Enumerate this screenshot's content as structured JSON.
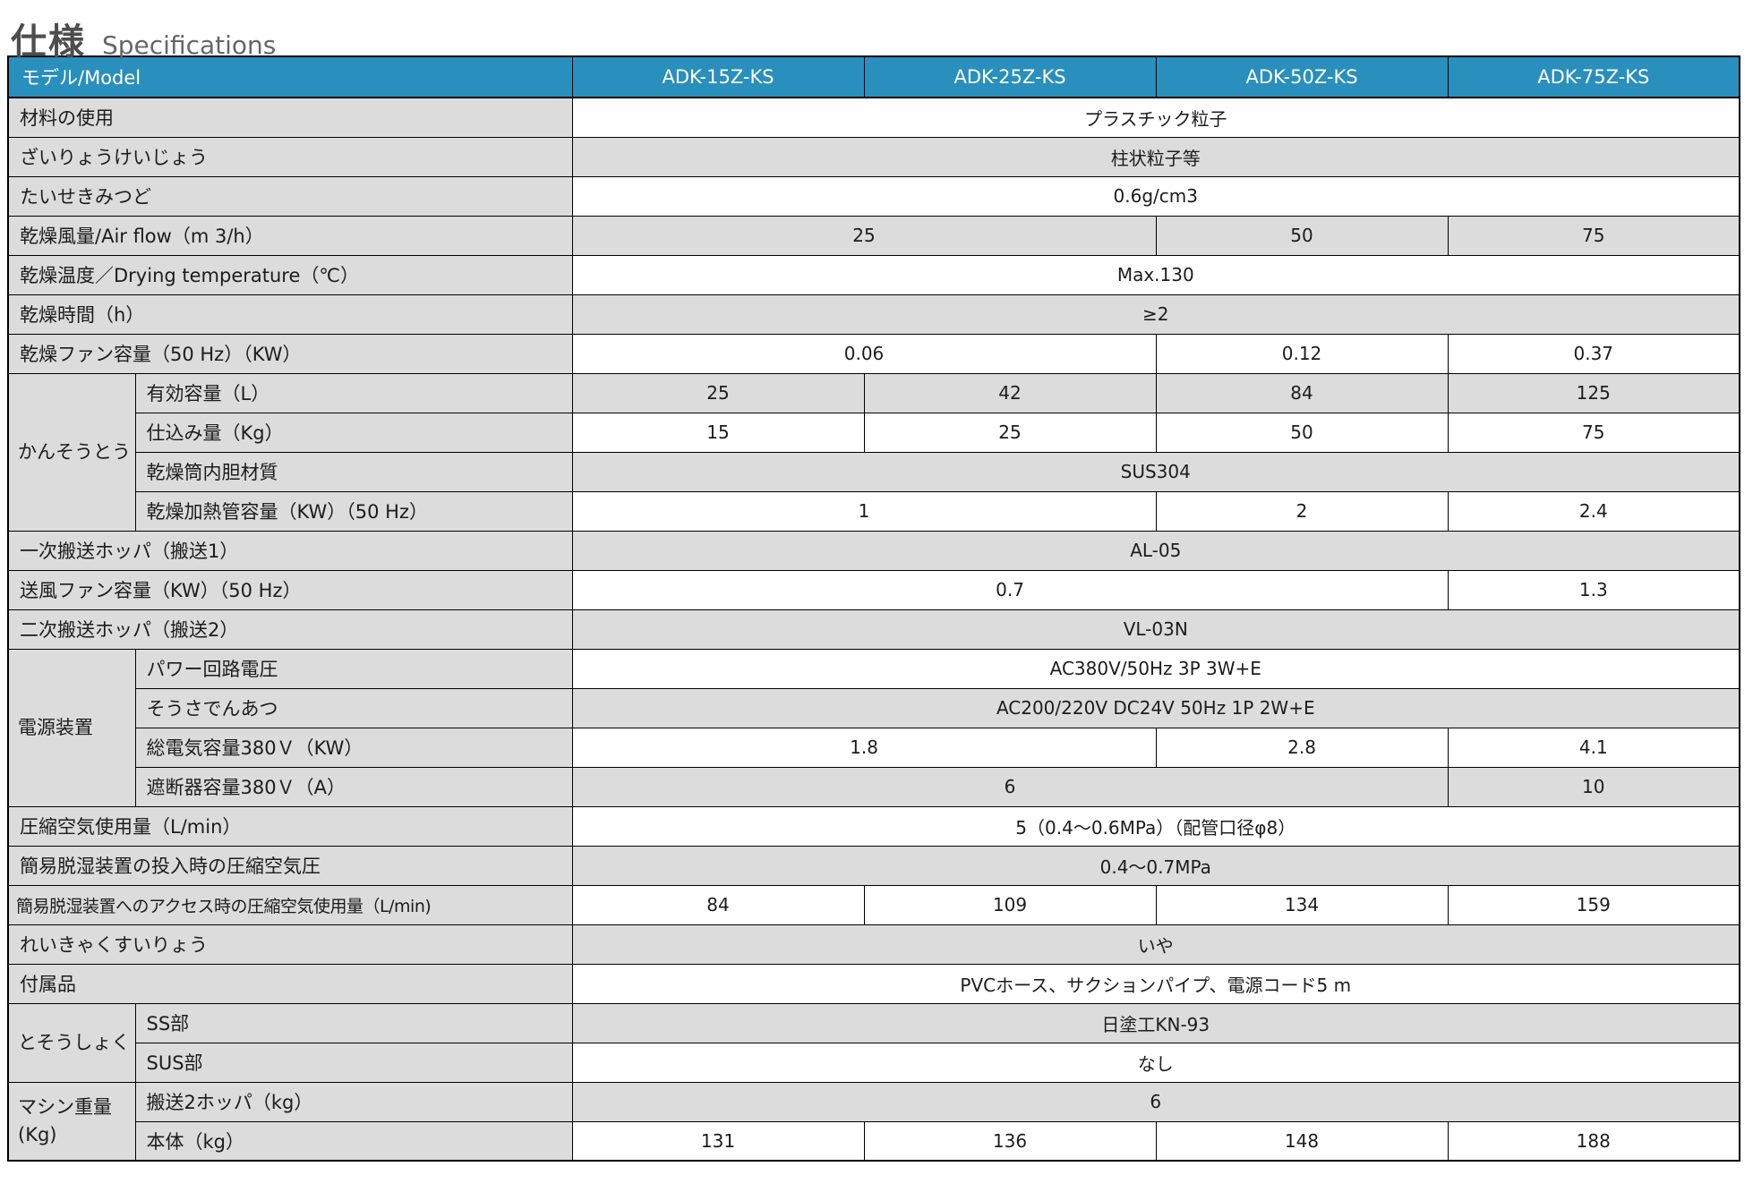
{
  "title": {
    "jp": "仕様",
    "en": "Specifications"
  },
  "colors": {
    "header_bg": "#298fbc",
    "label_bg": "#dcdcdc",
    "alt_row_bg": "#dcdcdc",
    "border": "#000000",
    "header_text": "#ffffff"
  },
  "table": {
    "header": {
      "model_label": "モデル/Model",
      "models": [
        "ADK-15Z-KS",
        "ADK-25Z-KS",
        "ADK-50Z-KS",
        "ADK-75Z-KS"
      ]
    },
    "rows": [
      {
        "label": "材料の使用",
        "shade": "white",
        "cells": [
          {
            "text": "プラスチック粒子",
            "span": 4
          }
        ]
      },
      {
        "label": "ざいりょうけいじょう",
        "shade": "gray",
        "cells": [
          {
            "text": "柱状粒子等",
            "span": 4
          }
        ]
      },
      {
        "label": "たいせきみつど",
        "shade": "white",
        "cells": [
          {
            "text": "0.6g/cm3",
            "span": 4
          }
        ]
      },
      {
        "label": "乾燥風量/Air flow（m 3/h）",
        "shade": "gray",
        "cells": [
          {
            "text": "25",
            "span": 2
          },
          {
            "text": "50",
            "span": 1
          },
          {
            "text": "75",
            "span": 1
          }
        ]
      },
      {
        "label": "乾燥温度／Drying temperature（℃）",
        "shade": "white",
        "cells": [
          {
            "text": "Max.130",
            "span": 4
          }
        ]
      },
      {
        "label": "乾燥時間（h）",
        "shade": "gray",
        "cells": [
          {
            "text": "≥2",
            "span": 4
          }
        ]
      },
      {
        "label": "乾燥ファン容量（50 Hz）（KW）",
        "shade": "white",
        "cells": [
          {
            "text": "0.06",
            "span": 2
          },
          {
            "text": "0.12",
            "span": 1
          },
          {
            "text": "0.37",
            "span": 1
          }
        ]
      },
      {
        "group": {
          "label": "かんそうとう",
          "rowspan": 4
        },
        "grouped": true,
        "label": "有効容量（L）",
        "shade": "gray",
        "cells": [
          {
            "text": "25",
            "span": 1
          },
          {
            "text": "42",
            "span": 1
          },
          {
            "text": "84",
            "span": 1
          },
          {
            "text": "125",
            "span": 1
          }
        ]
      },
      {
        "grouped": true,
        "label": "仕込み量（Kg）",
        "shade": "white",
        "cells": [
          {
            "text": "15",
            "span": 1
          },
          {
            "text": "25",
            "span": 1
          },
          {
            "text": "50",
            "span": 1
          },
          {
            "text": "75",
            "span": 1
          }
        ]
      },
      {
        "grouped": true,
        "label": "乾燥筒内胆材質",
        "shade": "gray",
        "cells": [
          {
            "text": "SUS304",
            "span": 4
          }
        ]
      },
      {
        "grouped": true,
        "label": "乾燥加熱管容量（KW）（50 Hz）",
        "shade": "white",
        "cells": [
          {
            "text": "1",
            "span": 2
          },
          {
            "text": "2",
            "span": 1
          },
          {
            "text": "2.4",
            "span": 1
          }
        ]
      },
      {
        "label": "一次搬送ホッパ（搬送1）",
        "shade": "gray",
        "cells": [
          {
            "text": "AL-05",
            "span": 4
          }
        ]
      },
      {
        "label": "送風ファン容量（KW）（50 Hz）",
        "shade": "white",
        "cells": [
          {
            "text": "0.7",
            "span": 3
          },
          {
            "text": "1.3",
            "span": 1
          }
        ]
      },
      {
        "label": "二次搬送ホッパ（搬送2）",
        "shade": "gray",
        "cells": [
          {
            "text": "VL-03N",
            "span": 4
          }
        ]
      },
      {
        "group": {
          "label": "電源装置",
          "rowspan": 4
        },
        "grouped": true,
        "label": "パワー回路電圧",
        "shade": "white",
        "cells": [
          {
            "text": "AC380V/50Hz 3P 3W+E",
            "span": 4
          }
        ]
      },
      {
        "grouped": true,
        "label": "そうさでんあつ",
        "shade": "gray",
        "cells": [
          {
            "text": "AC200/220V DC24V 50Hz 1P 2W+E",
            "span": 4
          }
        ]
      },
      {
        "grouped": true,
        "label": "総電気容量380Ｖ（KW）",
        "shade": "white",
        "cells": [
          {
            "text": "1.8",
            "span": 2
          },
          {
            "text": "2.8",
            "span": 1
          },
          {
            "text": "4.1",
            "span": 1
          }
        ]
      },
      {
        "grouped": true,
        "label": "遮断器容量380Ｖ（A）",
        "shade": "gray",
        "cells": [
          {
            "text": "6",
            "span": 3
          },
          {
            "text": "10",
            "span": 1
          }
        ]
      },
      {
        "label": "圧縮空気使用量（L/min）",
        "shade": "white",
        "cells": [
          {
            "text": "5（0.4～0.6MPa）（配管口径φ8）",
            "span": 4
          }
        ]
      },
      {
        "label": "簡易脱湿装置の投入時の圧縮空気圧",
        "shade": "gray",
        "cells": [
          {
            "text": "0.4～0.7MPa",
            "span": 4
          }
        ]
      },
      {
        "label": "簡易脱湿装置へのアクセス時の圧縮空気使用量（L/min)",
        "fit": true,
        "shade": "white",
        "cells": [
          {
            "text": "84",
            "span": 1
          },
          {
            "text": "109",
            "span": 1
          },
          {
            "text": "134",
            "span": 1
          },
          {
            "text": "159",
            "span": 1
          }
        ]
      },
      {
        "label": "れいきゃくすいりょう",
        "shade": "gray",
        "cells": [
          {
            "text": "いや",
            "span": 4
          }
        ]
      },
      {
        "label": "付属品",
        "shade": "white",
        "cells": [
          {
            "text": "PVCホース、サクションパイプ、電源コード5 m",
            "span": 4
          }
        ]
      },
      {
        "group": {
          "label": "とそうしょく",
          "rowspan": 2
        },
        "grouped": true,
        "label": "SS部",
        "shade": "gray",
        "cells": [
          {
            "text": "日塗工KN-93",
            "span": 4
          }
        ]
      },
      {
        "grouped": true,
        "label": "SUS部",
        "shade": "white",
        "cells": [
          {
            "text": "なし",
            "span": 4
          }
        ]
      },
      {
        "group": {
          "label": "マシン重量\n(Kg)",
          "rowspan": 2
        },
        "grouped": true,
        "label": "搬送2ホッパ（kg）",
        "shade": "gray",
        "cells": [
          {
            "text": "6",
            "span": 4
          }
        ]
      },
      {
        "grouped": true,
        "label": "本体（kg）",
        "shade": "white",
        "cells": [
          {
            "text": "131",
            "span": 1
          },
          {
            "text": "136",
            "span": 1
          },
          {
            "text": "148",
            "span": 1
          },
          {
            "text": "188",
            "span": 1
          }
        ]
      }
    ]
  }
}
